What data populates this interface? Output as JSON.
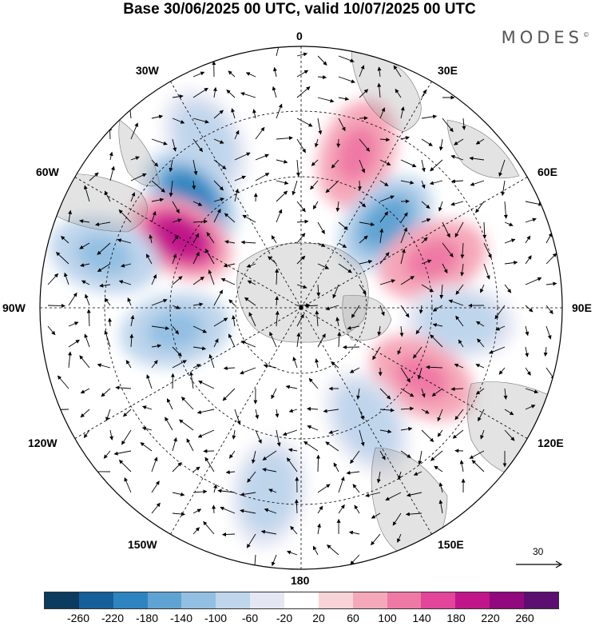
{
  "title": "Base 30/06/2025 00 UTC, valid 10/07/2025 00 UTC",
  "brand": "MODES",
  "brand_mark": "©",
  "longitude_labels": {
    "top": "0",
    "top_left": "30W",
    "top_right": "30E",
    "upper_left": "60W",
    "upper_right": "60E",
    "left": "90W",
    "right": "90E",
    "lower_left": "120W",
    "lower_right": "120E",
    "bottom_left": "150W",
    "bottom_right": "150E",
    "bottom": "180"
  },
  "reference_vector": "30",
  "colorbar": {
    "colors": [
      "#0b3b5e",
      "#15609a",
      "#2e84c0",
      "#5fa3d3",
      "#93bfe2",
      "#bfd5ec",
      "#e4e6f3",
      "#ffffff",
      "#f9d4d6",
      "#f5a8b9",
      "#ef79a5",
      "#e2459a",
      "#c0168a",
      "#92087e",
      "#5c0f71"
    ],
    "ticks": [
      "-260",
      "-220",
      "-180",
      "-140",
      "-100",
      "-60",
      "-20",
      "20",
      "60",
      "100",
      "140",
      "180",
      "220",
      "260"
    ]
  },
  "chart_data": {
    "type": "heatmap",
    "projection": "north polar stereographic",
    "field": "anomaly with wind vectors",
    "colorbar_range": [
      -260,
      260
    ],
    "anomaly_centres": [
      {
        "lon": "30W",
        "sign": "negative",
        "magnitude": -100
      },
      {
        "lon": "45W",
        "sign": "negative",
        "magnitude": -220
      },
      {
        "lon": "60W",
        "sign": "positive",
        "magnitude": 220
      },
      {
        "lon": "75W",
        "sign": "negative",
        "magnitude": -140
      },
      {
        "lon": "100W",
        "sign": "negative",
        "magnitude": -140
      },
      {
        "lon": "20E",
        "sign": "positive",
        "magnitude": 140
      },
      {
        "lon": "45E",
        "sign": "negative",
        "magnitude": -180
      },
      {
        "lon": "70E",
        "sign": "positive",
        "magnitude": 140
      },
      {
        "lon": "95E",
        "sign": "negative",
        "magnitude": -100
      },
      {
        "lon": "120E",
        "sign": "positive",
        "magnitude": 140
      },
      {
        "lon": "150E",
        "sign": "negative",
        "magnitude": -100
      },
      {
        "lon": "170W",
        "sign": "negative",
        "magnitude": -100
      }
    ]
  }
}
